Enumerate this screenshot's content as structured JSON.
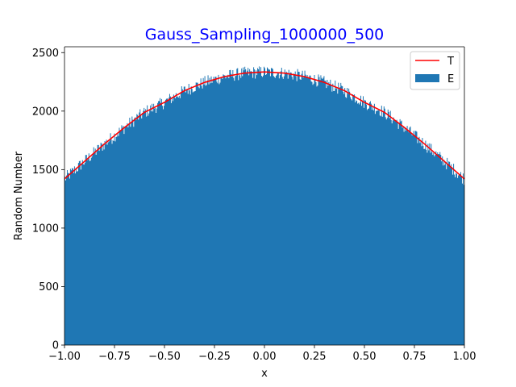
{
  "chart_data": {
    "type": "bar",
    "title": "Gauss_Sampling_1000000_500",
    "title_color": "#0000ff",
    "xlabel": "x",
    "ylabel": "Random Number",
    "xlim": [
      -1.0,
      1.0
    ],
    "ylim": [
      0,
      2550
    ],
    "xticks": [
      -1.0,
      -0.75,
      -0.5,
      -0.25,
      0.0,
      0.25,
      0.5,
      0.75,
      1.0
    ],
    "xtick_labels": [
      "−1.00",
      "−0.75",
      "−0.50",
      "−0.25",
      "0.00",
      "0.25",
      "0.50",
      "0.75",
      "1.00"
    ],
    "yticks": [
      0,
      500,
      1000,
      1500,
      2000,
      2500
    ],
    "ytick_labels": [
      "0",
      "500",
      "1000",
      "1500",
      "2000",
      "2500"
    ],
    "grid": false,
    "legend_position": "upper right",
    "series": [
      {
        "name": "T",
        "kind": "line",
        "color": "#ff0000"
      },
      {
        "name": "E",
        "kind": "histogram",
        "color": "#1f77b4"
      }
    ],
    "line_T": {
      "x": [
        -1.0,
        -0.9,
        -0.8,
        -0.7,
        -0.6,
        -0.5,
        -0.4,
        -0.3,
        -0.2,
        -0.1,
        0.0,
        0.1,
        0.2,
        0.3,
        0.4,
        0.5,
        0.6,
        0.7,
        0.8,
        0.9,
        1.0
      ],
      "y": [
        1420,
        1570,
        1720,
        1860,
        1990,
        2075,
        2175,
        2245,
        2295,
        2325,
        2335,
        2325,
        2295,
        2245,
        2175,
        2075,
        1990,
        1860,
        1720,
        1570,
        1420
      ]
    },
    "histogram_E": {
      "bins": 500,
      "range": [
        -1.0,
        1.0
      ],
      "envelope_x": [
        -1.0,
        -0.9,
        -0.8,
        -0.7,
        -0.6,
        -0.5,
        -0.4,
        -0.3,
        -0.2,
        -0.1,
        0.0,
        0.1,
        0.2,
        0.3,
        0.4,
        0.5,
        0.6,
        0.7,
        0.8,
        0.9,
        1.0
      ],
      "envelope_y": [
        1420,
        1570,
        1720,
        1860,
        1990,
        2075,
        2175,
        2245,
        2295,
        2325,
        2335,
        2325,
        2295,
        2245,
        2175,
        2075,
        1990,
        1860,
        1720,
        1570,
        1420
      ],
      "noise_amplitude": 55
    }
  }
}
